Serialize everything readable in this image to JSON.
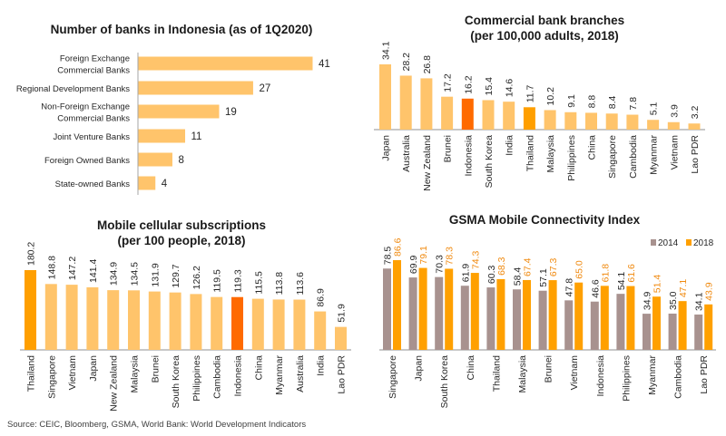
{
  "source_note": "Source: CEIC, Bloomberg, GSMA, World Bank: World Development Indicators",
  "colors": {
    "base": "#FFC46B",
    "indonesia": "#FF6A00",
    "thailand": "#FF9F00",
    "series_2014": "#A8928F",
    "series_2018": "#FFA000",
    "label_2018": "#F08A10",
    "axis": "#A6A6A6"
  },
  "chart_data": [
    {
      "id": "banks",
      "type": "bar",
      "orientation": "horizontal",
      "title": "Number of banks in Indonesia (as of 1Q2020)",
      "categories": [
        "Foreign Exchange|Commercial Banks",
        "Regional Development Banks",
        "Non-Foreign Exchange|Commercial Banks",
        "Joint Venture Banks",
        "Foreign Owned Banks",
        "State-owned Banks"
      ],
      "values": [
        41,
        27,
        19,
        11,
        8,
        4
      ],
      "xlim": [
        0,
        41
      ],
      "grid": false
    },
    {
      "id": "branches",
      "type": "bar",
      "title": "Commercial bank branches|(per 100,000 adults, 2018)",
      "categories": [
        "Japan",
        "Australia",
        "New Zealand",
        "Brunei",
        "Indonesia",
        "South Korea",
        "India",
        "Thailand",
        "Malaysia",
        "Philippines",
        "China",
        "Singapore",
        "Cambodia",
        "Myanmar",
        "Vietnam",
        "Lao PDR"
      ],
      "values": [
        34.1,
        28.2,
        26.8,
        17.2,
        16.2,
        15.4,
        14.6,
        11.7,
        10.2,
        9.1,
        8.8,
        8.4,
        7.8,
        5.1,
        3.9,
        3.2
      ],
      "highlight": {
        "Indonesia": "indonesia",
        "Thailand": "thailand"
      },
      "ylim": [
        0,
        34.1
      ],
      "grid": false
    },
    {
      "id": "mobile",
      "type": "bar",
      "title": "Mobile cellular subscriptions|(per 100 people, 2018)",
      "categories": [
        "Thailand",
        "Singapore",
        "Vietnam",
        "Japan",
        "New Zealand",
        "Malaysia",
        "Brunei",
        "South Korea",
        "Philippines",
        "Cambodia",
        "Indonesia",
        "China",
        "Myanmar",
        "Australia",
        "India",
        "Lao PDR"
      ],
      "values": [
        180.2,
        148.8,
        147.2,
        141.4,
        134.9,
        134.5,
        131.9,
        129.7,
        126.2,
        119.5,
        119.3,
        115.5,
        113.8,
        113.6,
        86.9,
        51.9
      ],
      "highlight": {
        "Indonesia": "indonesia",
        "Thailand": "thailand"
      },
      "ylim": [
        0,
        180.2
      ],
      "grid": false
    },
    {
      "id": "gsma",
      "type": "bar",
      "title": "GSMA Mobile Connectivity Index",
      "categories": [
        "Singapore",
        "Japan",
        "South Korea",
        "China",
        "Thailand",
        "Malaysia",
        "Brunei",
        "Vietnam",
        "Indonesia",
        "Philippines",
        "Myanmar",
        "Cambodia",
        "Lao PDR"
      ],
      "series": [
        {
          "name": "2014",
          "values": [
            78.5,
            69.9,
            70.3,
            61.9,
            60.3,
            58.4,
            57.1,
            47.8,
            46.6,
            54.1,
            34.9,
            35.0,
            34.1
          ]
        },
        {
          "name": "2018",
          "values": [
            86.6,
            79.1,
            78.3,
            74.3,
            68.3,
            67.4,
            67.3,
            65.0,
            61.8,
            61.6,
            51.4,
            47.1,
            43.9
          ]
        }
      ],
      "legend": "top-right",
      "ylim": [
        0,
        86.6
      ],
      "grid": false
    }
  ]
}
